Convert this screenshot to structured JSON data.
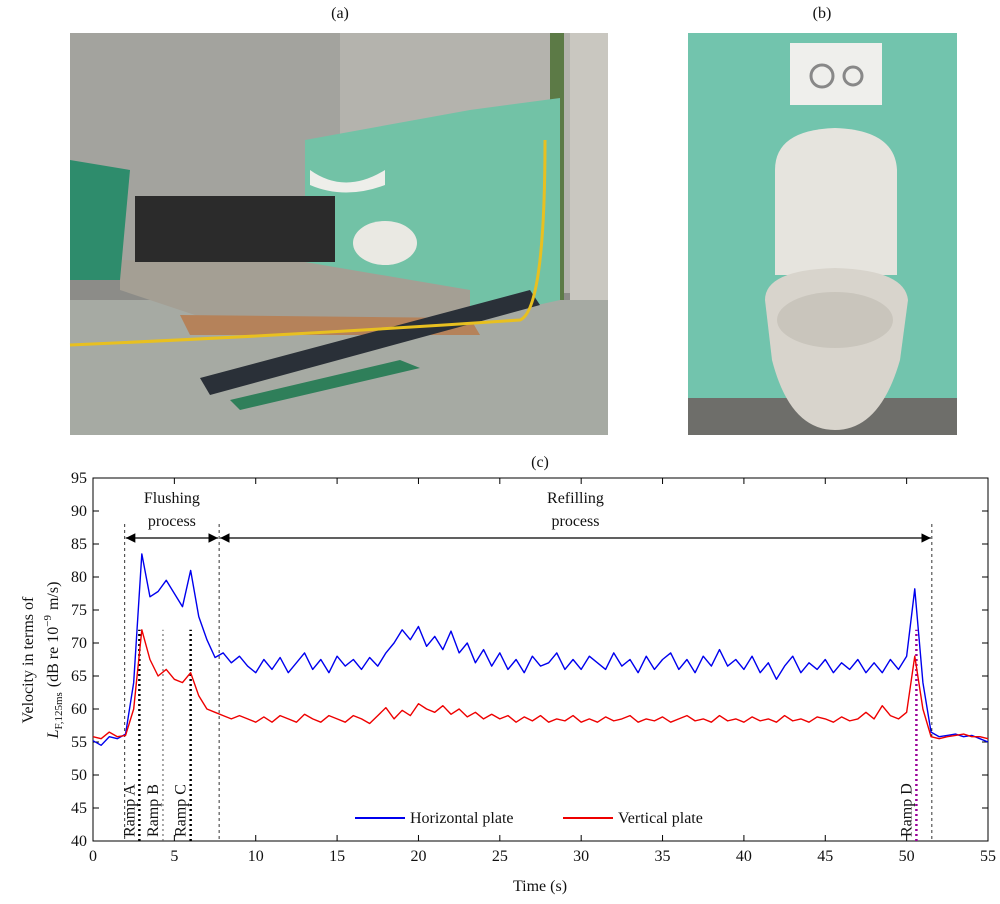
{
  "panels": {
    "a": {
      "label": "(a)"
    },
    "b": {
      "label": "(b)"
    }
  },
  "chart_data": {
    "type": "line",
    "title": "(c)",
    "xlabel": "Time (s)",
    "ylabel": {
      "line1": "Velocity in terms of",
      "symbol": "L",
      "subscript": "F,125ms",
      "unit_start": "(dB re 10",
      "exponent": "−9",
      "unit_end": "m/s)"
    },
    "xlim": [
      0,
      55
    ],
    "ylim": [
      40,
      95
    ],
    "xticks": [
      0,
      5,
      10,
      15,
      20,
      25,
      30,
      35,
      40,
      45,
      50,
      55
    ],
    "yticks": [
      40,
      45,
      50,
      55,
      60,
      65,
      70,
      75,
      80,
      85,
      90,
      95
    ],
    "grid": false,
    "legend": "bottom",
    "x": [
      0,
      0.5,
      1,
      1.5,
      2,
      2.5,
      3,
      3.5,
      4,
      4.5,
      5,
      5.5,
      6,
      6.5,
      7,
      7.5,
      8,
      8.5,
      9,
      9.5,
      10,
      10.5,
      11,
      11.5,
      12,
      12.5,
      13,
      13.5,
      14,
      14.5,
      15,
      15.5,
      16,
      16.5,
      17,
      17.5,
      18,
      18.5,
      19,
      19.5,
      20,
      20.5,
      21,
      21.5,
      22,
      22.5,
      23,
      23.5,
      24,
      24.5,
      25,
      25.5,
      26,
      26.5,
      27,
      27.5,
      28,
      28.5,
      29,
      29.5,
      30,
      30.5,
      31,
      31.5,
      32,
      32.5,
      33,
      33.5,
      34,
      34.5,
      35,
      35.5,
      36,
      36.5,
      37,
      37.5,
      38,
      38.5,
      39,
      39.5,
      40,
      40.5,
      41,
      41.5,
      42,
      42.5,
      43,
      43.5,
      44,
      44.5,
      45,
      45.5,
      46,
      46.5,
      47,
      47.5,
      48,
      48.5,
      49,
      49.5,
      50,
      50.5,
      51,
      51.5,
      52,
      52.5,
      53,
      53.5,
      54,
      54.5,
      55
    ],
    "series": [
      {
        "name": "Horizontal plate",
        "color": "#0000ee",
        "values": [
          55.2,
          54.5,
          55.8,
          55.5,
          56.2,
          64,
          83.5,
          77,
          77.8,
          79.5,
          77.5,
          75.5,
          81,
          74,
          70.5,
          67.8,
          68.5,
          67,
          68,
          66.5,
          65.5,
          67.5,
          66,
          67.8,
          65.5,
          67,
          68.5,
          66,
          67.5,
          65.5,
          68,
          66.5,
          67.5,
          66,
          67.8,
          66.5,
          68.5,
          70,
          72,
          70.5,
          72.5,
          69.5,
          71,
          69,
          71.8,
          68.5,
          70,
          67,
          69,
          66.5,
          68.5,
          66,
          67.5,
          65.5,
          68,
          66.5,
          67,
          68.5,
          66,
          67.5,
          66,
          68,
          67,
          66,
          68.5,
          66.5,
          67.5,
          65.5,
          68,
          66,
          67.5,
          68.5,
          66,
          67.5,
          65.5,
          68,
          66.5,
          69,
          66.5,
          67.5,
          66,
          68,
          65.5,
          67,
          64.5,
          66.5,
          68,
          65.5,
          67,
          66,
          67.5,
          65.5,
          67,
          66,
          67.5,
          65.5,
          67,
          65.5,
          67.5,
          66,
          68,
          78.2,
          64,
          56.5,
          55.8,
          56,
          56.2,
          55.8,
          56,
          55.5,
          55
        ]
      },
      {
        "name": "Vertical plate",
        "color": "#ee0000",
        "values": [
          55.8,
          55.5,
          56.5,
          55.8,
          56,
          60,
          72,
          67.5,
          65,
          66,
          64.5,
          64,
          65.5,
          62,
          60,
          59.5,
          59,
          58.5,
          59,
          58.5,
          58,
          58.8,
          58,
          59,
          58.5,
          58,
          59.2,
          58.5,
          58,
          59,
          58.5,
          58,
          59,
          58.5,
          57.8,
          59,
          60.2,
          58.5,
          59.8,
          59,
          60.8,
          60,
          59.5,
          60.5,
          59.2,
          60,
          58.8,
          59.5,
          58.5,
          59.2,
          58.5,
          59,
          58,
          58.8,
          58.2,
          59,
          58,
          58.5,
          58.2,
          59,
          58,
          58.5,
          58,
          58.8,
          58.2,
          58.5,
          59,
          58,
          58.5,
          58.2,
          58.8,
          58,
          58.5,
          59,
          58.2,
          58.5,
          58,
          59,
          58.2,
          58.5,
          58,
          58.8,
          58.2,
          58.5,
          58,
          59,
          58.2,
          58.5,
          58,
          58.8,
          58.5,
          58,
          58.8,
          58.2,
          58.5,
          59.5,
          58.5,
          60.5,
          59,
          58.5,
          59.5,
          68,
          60,
          55.8,
          55.5,
          55.8,
          56,
          56.2,
          55.8,
          55.8,
          55.5
        ]
      }
    ],
    "phases": [
      {
        "label_lines": [
          "Flushing",
          "process"
        ],
        "start": 1.95,
        "end": 7.75
      },
      {
        "label_lines": [
          "Refilling",
          "process"
        ],
        "start": 7.75,
        "end": 51.55
      }
    ],
    "markers": [
      {
        "label": "Ramp A",
        "x": 2.85,
        "color": "#000000"
      },
      {
        "label": "Ramp B",
        "x": 4.3,
        "color": "#555555"
      },
      {
        "label": "Ramp C",
        "x": 6.0,
        "color": "#000000"
      },
      {
        "label": "Ramp D",
        "x": 50.6,
        "color": "#990099"
      }
    ]
  }
}
